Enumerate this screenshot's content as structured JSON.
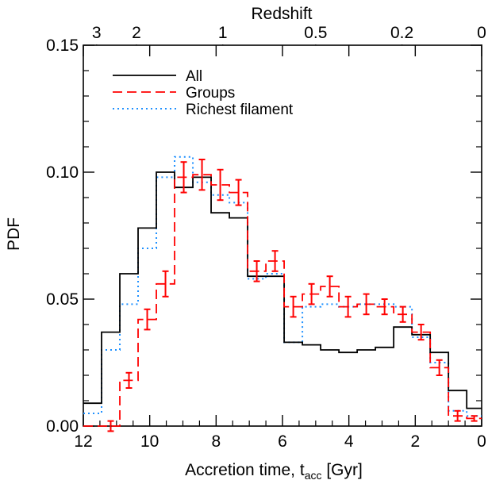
{
  "chart_data": {
    "type": "line",
    "xlabel": "Accretion time, t",
    "xlabel_sub": "acc",
    "xlabel_unit": " [Gyr]",
    "ylabel": "PDF",
    "top_axis_label": "Redshift",
    "xlim": [
      12,
      0
    ],
    "ylim": [
      0.0,
      0.15
    ],
    "x_ticks": [
      12,
      10,
      8,
      6,
      4,
      2,
      0
    ],
    "x_tick_labels": [
      "12",
      "10",
      "8",
      "6",
      "4",
      "2",
      "0"
    ],
    "y_ticks": [
      0.0,
      0.05,
      0.1,
      0.15
    ],
    "y_tick_labels": [
      "0.00",
      "0.05",
      "0.10",
      "0.15"
    ],
    "top_ticks": [
      {
        "label": "3",
        "t": 11.6
      },
      {
        "label": "2",
        "t": 10.4
      },
      {
        "label": "1",
        "t": 7.8
      },
      {
        "label": "0.5",
        "t": 5.0
      },
      {
        "label": "0.2",
        "t": 2.4
      },
      {
        "label": "0",
        "t": 0.0
      }
    ],
    "legend_position": "top-left",
    "colors": {
      "all": "#000000",
      "groups": "#ff0000",
      "filament": "#1e90ff"
    },
    "bin_edges": [
      12.0,
      11.45,
      10.9,
      10.35,
      9.8,
      9.25,
      8.7,
      8.15,
      7.6,
      7.05,
      6.5,
      5.95,
      5.4,
      4.85,
      4.3,
      3.75,
      3.2,
      2.65,
      2.1,
      1.55,
      1.0,
      0.45,
      0.0
    ],
    "series": [
      {
        "name": "All",
        "style": "solid",
        "values": [
          0.009,
          0.037,
          0.06,
          0.078,
          0.1,
          0.094,
          0.098,
          0.084,
          0.082,
          0.059,
          0.059,
          0.033,
          0.032,
          0.03,
          0.029,
          0.03,
          0.031,
          0.039,
          0.036,
          0.029,
          0.014,
          0.007
        ]
      },
      {
        "name": "Groups",
        "style": "dashed",
        "values": [
          0.0,
          0.0,
          0.018,
          0.042,
          0.056,
          0.098,
          0.099,
          0.095,
          0.092,
          0.061,
          0.065,
          0.047,
          0.052,
          0.055,
          0.047,
          0.048,
          0.047,
          0.044,
          0.037,
          0.023,
          0.004,
          0.003
        ],
        "errors": [
          0.0,
          0.002,
          0.003,
          0.004,
          0.005,
          0.006,
          0.006,
          0.006,
          0.005,
          0.004,
          0.004,
          0.004,
          0.004,
          0.004,
          0.004,
          0.004,
          0.003,
          0.003,
          0.003,
          0.003,
          0.002,
          0.001
        ]
      },
      {
        "name": "Richest filament",
        "style": "dotted",
        "values": [
          0.005,
          0.03,
          0.048,
          0.07,
          0.098,
          0.106,
          0.096,
          0.091,
          0.088,
          0.058,
          0.06,
          0.033,
          0.047,
          0.048,
          0.047,
          0.048,
          0.048,
          0.047,
          0.035,
          0.025,
          0.006,
          0.004
        ]
      }
    ]
  }
}
